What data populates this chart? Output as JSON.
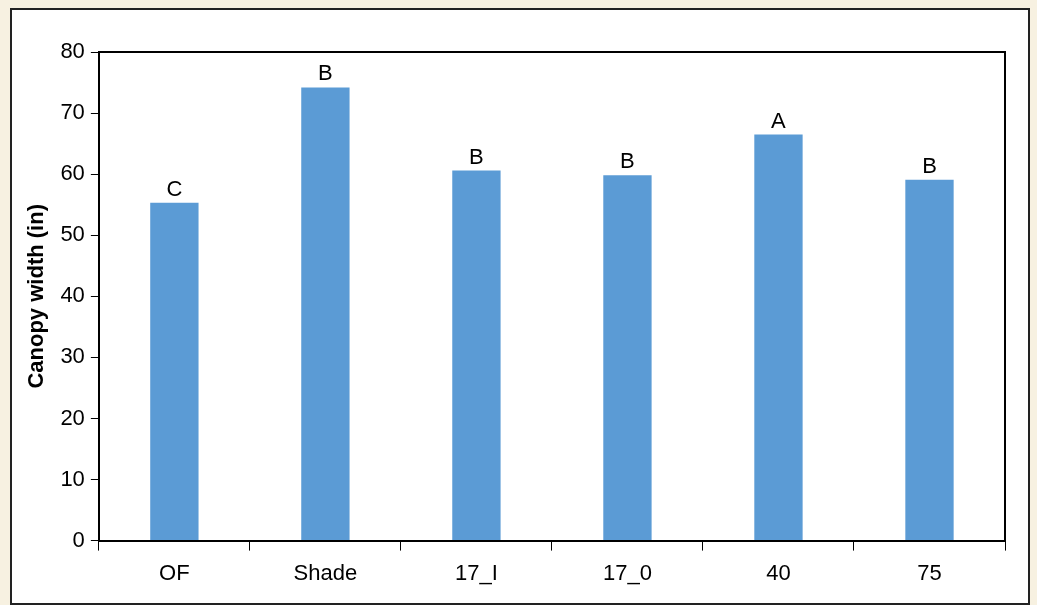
{
  "chart_data": {
    "type": "bar",
    "ylabel": "Canopy width (in)",
    "categories": [
      "OF",
      "Shade",
      "17_I",
      "17_0",
      "40",
      "75"
    ],
    "values": [
      55.3,
      74.2,
      60.6,
      59.8,
      66.5,
      59.1
    ],
    "color": "#5b9bd5",
    "ylim": [
      0,
      80
    ],
    "yticks": [
      0,
      10,
      20,
      30,
      40,
      50,
      60,
      70,
      80
    ],
    "grid": false,
    "legend": false,
    "annotations": [
      {
        "text": "C",
        "x": "OF",
        "y": 55.3
      },
      {
        "text": "B",
        "x": "Shade",
        "y": 74.2
      },
      {
        "text": "B",
        "x": "17_I",
        "y": 60.6
      },
      {
        "text": "B",
        "x": "17_0",
        "y": 59.8
      },
      {
        "text": "A",
        "x": "40",
        "y": 66.5
      },
      {
        "text": "B",
        "x": "75",
        "y": 59.1
      }
    ]
  }
}
